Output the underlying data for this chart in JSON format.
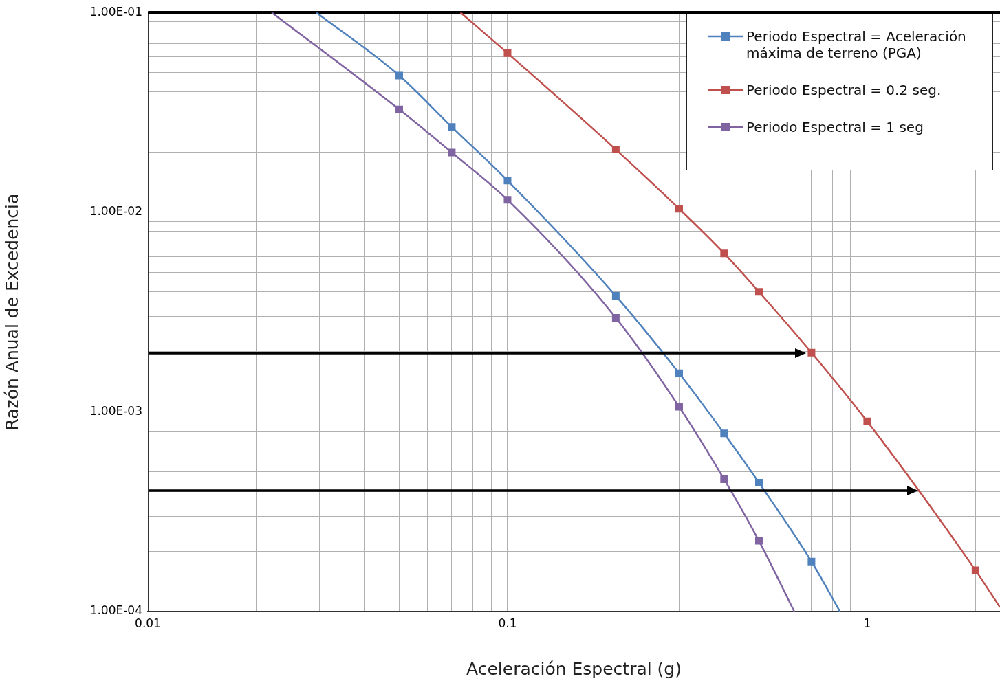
{
  "chart_data": {
    "type": "line",
    "xlabel": "Aceleración Espectral (g)",
    "ylabel": "Razón Anual de Excedencia",
    "log": "xy",
    "grid": true,
    "legend": "top right",
    "marker": "square",
    "xlim": [
      0.01,
      2.34
    ],
    "ylim": [
      0.0001,
      0.1
    ],
    "xticks": [
      0.01,
      {
        "value": 0.02,
        "label": null
      },
      {
        "value": 0.03,
        "label": null
      },
      {
        "value": 0.04,
        "label": null
      },
      {
        "value": 0.05,
        "label": null
      },
      {
        "value": 0.06,
        "label": null
      },
      {
        "value": 0.07,
        "label": null
      },
      {
        "value": 0.08,
        "label": null
      },
      {
        "value": 0.09,
        "label": null
      },
      0.1,
      {
        "value": 0.2,
        "label": null
      },
      {
        "value": 0.3,
        "label": null
      },
      {
        "value": 0.4,
        "label": null
      },
      {
        "value": 0.5,
        "label": null
      },
      {
        "value": 0.6,
        "label": null
      },
      {
        "value": 0.7,
        "label": null
      },
      {
        "value": 0.8,
        "label": null
      },
      {
        "value": 0.9,
        "label": null
      },
      1,
      {
        "value": 2,
        "label": null
      }
    ],
    "yticks": [
      {
        "value": 0.0001,
        "label": "1.00E-04"
      },
      {
        "value": 0.0002,
        "label": null
      },
      {
        "value": 0.0003,
        "label": null
      },
      {
        "value": 0.0004,
        "label": null
      },
      {
        "value": 0.0005,
        "label": null
      },
      {
        "value": 0.0006,
        "label": null
      },
      {
        "value": 0.0007,
        "label": null
      },
      {
        "value": 0.0008,
        "label": null
      },
      {
        "value": 0.0009,
        "label": null
      },
      {
        "value": 0.001,
        "label": "1.00E-03"
      },
      {
        "value": 0.002,
        "label": null
      },
      {
        "value": 0.003,
        "label": null
      },
      {
        "value": 0.004,
        "label": null
      },
      {
        "value": 0.005,
        "label": null
      },
      {
        "value": 0.006,
        "label": null
      },
      {
        "value": 0.007,
        "label": null
      },
      {
        "value": 0.008,
        "label": null
      },
      {
        "value": 0.009,
        "label": null
      },
      {
        "value": 0.01,
        "label": "1.00E-02"
      },
      {
        "value": 0.02,
        "label": null
      },
      {
        "value": 0.03,
        "label": null
      },
      {
        "value": 0.04,
        "label": null
      },
      {
        "value": 0.05,
        "label": null
      },
      {
        "value": 0.06,
        "label": null
      },
      {
        "value": 0.07,
        "label": null
      },
      {
        "value": 0.08,
        "label": null
      },
      {
        "value": 0.09,
        "label": null
      },
      {
        "value": 0.1,
        "label": "1.00E-01"
      }
    ],
    "ref_lines": [
      {
        "axis": "y",
        "value": 0.1,
        "color": "#000000"
      }
    ],
    "series": [
      {
        "name": "Periodo Espectral = Aceleración máxima de terreno (PGA)",
        "color": "#4f81bd",
        "x": [
          0.0294,
          0.05,
          0.07,
          0.1,
          0.2,
          0.3,
          0.4,
          0.5,
          0.7,
          0.84
        ],
        "values": [
          0.1,
          0.0483,
          0.0267,
          0.0144,
          0.00381,
          0.00156,
          0.00078,
          0.000442,
          0.000178,
          0.0001
        ]
      },
      {
        "name": "Periodo Espectral = 0.2 seg.",
        "color": "#c0504d",
        "x": [
          0.074,
          0.1,
          0.2,
          0.3,
          0.4,
          0.5,
          0.7,
          1,
          2,
          2.34
        ],
        "values": [
          0.1,
          0.0626,
          0.0206,
          0.0104,
          0.00622,
          0.00399,
          0.00198,
          0.000896,
          0.000161,
          0.000105
        ]
      },
      {
        "name": "Periodo Espectral = 1 seg",
        "color": "#8064a2",
        "x": [
          0.0221,
          0.05,
          0.07,
          0.1,
          0.2,
          0.3,
          0.4,
          0.5,
          0.627
        ],
        "values": [
          0.1,
          0.0327,
          0.0199,
          0.01153,
          0.00296,
          0.00106,
          0.00046,
          0.000226,
          0.0001
        ]
      }
    ]
  }
}
